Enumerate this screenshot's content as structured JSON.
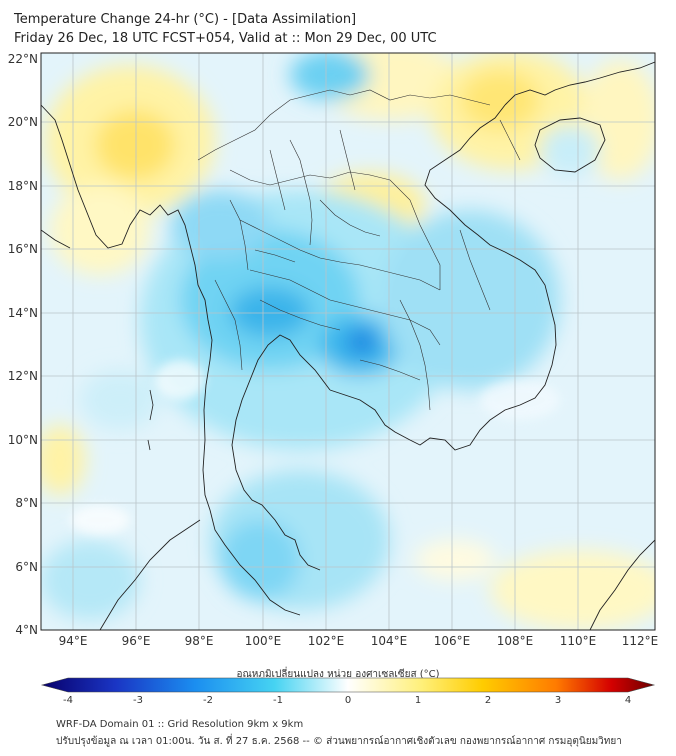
{
  "title": {
    "line1": "Temperature Change 24-hr (°C) - [Data Assimilation]",
    "line2": "Friday 26 Dec, 18 UTC FCST+054, Valid at :: Mon 29 Dec, 00 UTC"
  },
  "axes": {
    "lon_labels": [
      "94°E",
      "96°E",
      "98°E",
      "100°E",
      "102°E",
      "104°E",
      "106°E",
      "108°E",
      "110°E",
      "112°E"
    ],
    "lat_labels": [
      "22°N",
      "20°N",
      "18°N",
      "16°N",
      "14°N",
      "12°N",
      "10°N",
      "8°N",
      "6°N",
      "4°N"
    ]
  },
  "colorbar": {
    "title": "อุณหภูมิเปลี่ยนแปลง หน่วย องศาเซลเซียส (°C)",
    "ticks": [
      "-4",
      "-3",
      "-2",
      "-1",
      "0",
      "1",
      "2",
      "3",
      "4"
    ],
    "range": [
      -4,
      4
    ],
    "colors": [
      "#08006b",
      "#1a35c4",
      "#1b8ef0",
      "#46d3f2",
      "#ffffff",
      "#fff07a",
      "#ffcc00",
      "#ff7b00",
      "#d40000",
      "#6b0000"
    ]
  },
  "footer": {
    "line1": "WRF-DA Domain 01 :: Grid Resolution 9km x 9km",
    "line2": "ปรับปรุงข้อมูล ณ เวลา 01:00น. วัน ส. ที่ 27 ธ.ค. 2568 -- © ส่วนพยากรณ์อากาศเชิงตัวเลข กองพยากรณ์อากาศ กรมอุตุนิยมวิทยา"
  }
}
